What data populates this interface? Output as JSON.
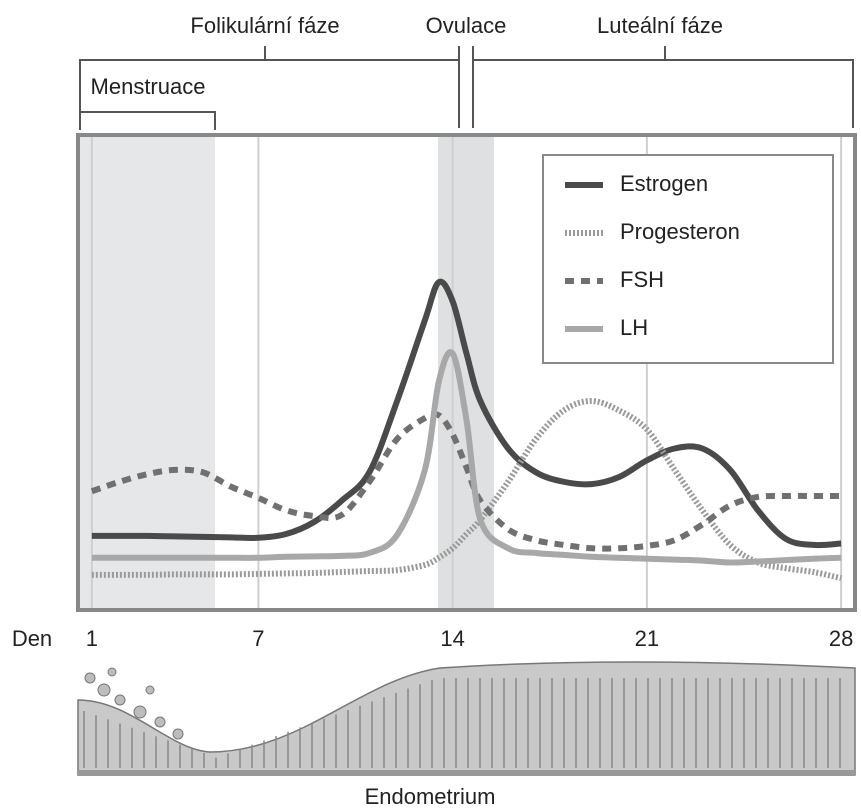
{
  "chart_data": {
    "type": "line",
    "annotations": [
      "Folikulární fáze",
      "Ovulace",
      "Luteální fáze",
      "Menstruace",
      "Endometrium"
    ],
    "xlabel": "Den",
    "x": [
      1,
      2,
      3,
      4,
      5,
      6,
      7,
      8,
      9,
      10,
      11,
      12,
      13,
      13.5,
      14,
      14.5,
      15,
      16,
      17,
      18,
      19,
      20,
      21,
      22,
      23,
      24,
      25,
      26,
      27,
      28
    ],
    "xlim": [
      0.5,
      28.5
    ],
    "xticks": [
      1,
      7,
      14,
      21,
      28
    ],
    "ylim": [
      0,
      100
    ],
    "legend": "upper right",
    "series": [
      {
        "name": "Estrogen",
        "color": "#4a4a4a",
        "style": "solid",
        "values": [
          15.6,
          15.6,
          15.6,
          15.5,
          15.4,
          15.3,
          15.2,
          16,
          18.5,
          23,
          29,
          44,
          61,
          69,
          65,
          54,
          44,
          34,
          29,
          27,
          26.5,
          28,
          31.5,
          34,
          34,
          29.5,
          21,
          15,
          13.7,
          14
        ]
      },
      {
        "name": "Progesteron",
        "color": "#9a9a9a",
        "style": "hatched",
        "values": [
          7.4,
          7.4,
          7.4,
          7.5,
          7.5,
          7.5,
          7.6,
          7.7,
          7.8,
          8,
          8.2,
          8.4,
          9.5,
          11,
          13,
          16,
          19,
          27,
          36,
          42,
          44,
          42,
          38,
          29.5,
          21,
          13.7,
          10,
          8.8,
          8,
          6.7
        ]
      },
      {
        "name": "FSH",
        "color": "#707070",
        "style": "dashed",
        "values": [
          25,
          27,
          28.6,
          29.5,
          29,
          26,
          23.6,
          21,
          19.8,
          20,
          27,
          36,
          40.4,
          41,
          37,
          30,
          23,
          17,
          14.7,
          13.7,
          13,
          13,
          13.5,
          14.7,
          18,
          22,
          23.8,
          24,
          24,
          24
        ]
      },
      {
        "name": "LH",
        "color": "#a8a8a8",
        "style": "solid",
        "values": [
          11,
          11,
          11,
          11,
          11,
          11,
          11,
          11.2,
          11.3,
          11.4,
          12,
          15.8,
          29.5,
          48,
          54,
          40,
          19,
          13,
          12,
          11.6,
          11.2,
          11,
          10.8,
          10.6,
          10.4,
          10,
          10.2,
          10.5,
          10.8,
          11
        ]
      }
    ]
  }
}
